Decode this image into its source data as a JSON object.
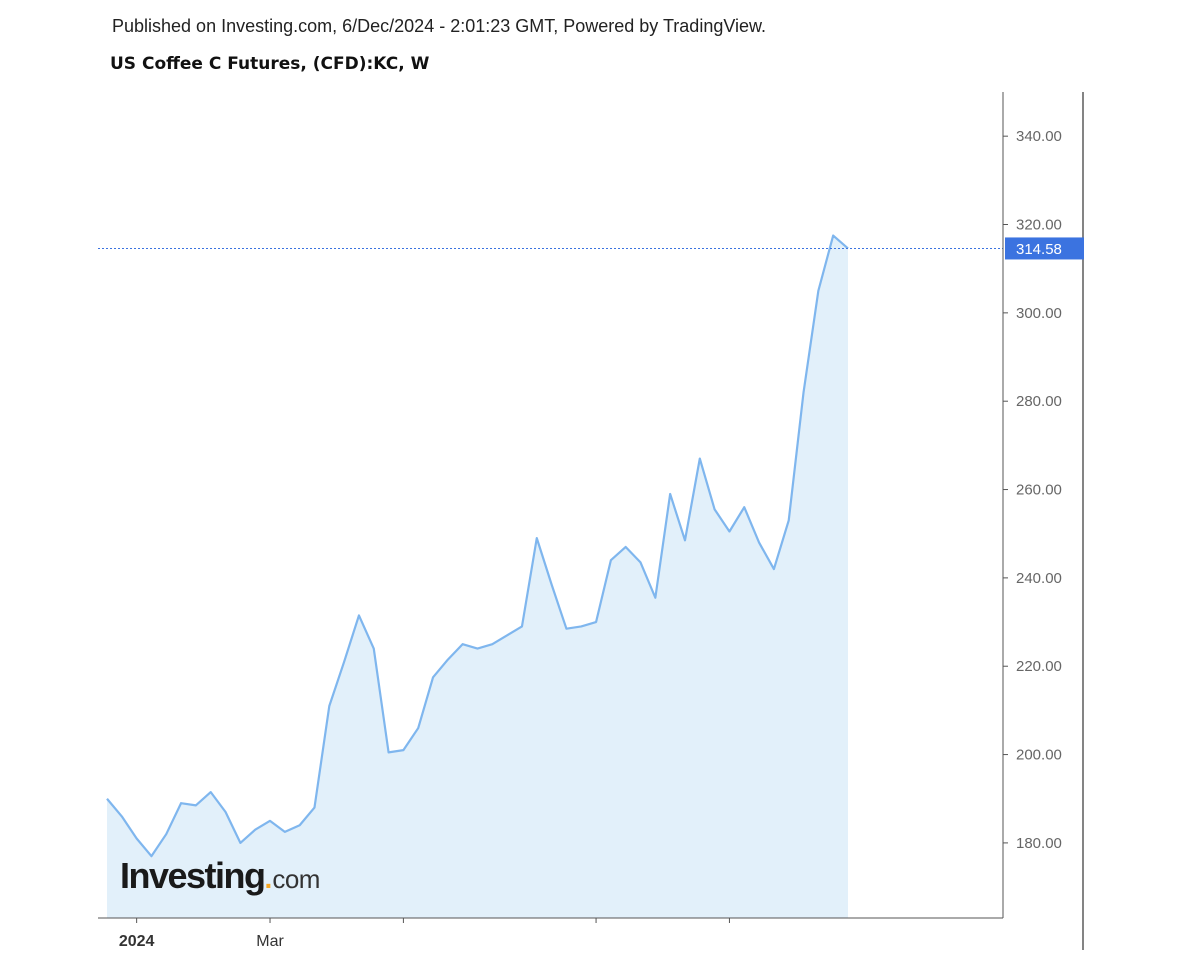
{
  "header": {
    "published": "Published on Investing.com, 6/Dec/2024 - 2:01:23 GMT, Powered by TradingView.",
    "title": "US Coffee C Futures, (CFD):KC, W"
  },
  "logo": {
    "main": "Investing",
    "suffix": "com"
  },
  "colors": {
    "line": "#7fb6ee",
    "area": "#e2f0fa",
    "price_tag": "#3b73e0",
    "axis": "#555555",
    "tick_text": "#666666"
  },
  "chart_data": {
    "type": "area",
    "title": "US Coffee C Futures, (CFD):KC, W",
    "interval": "W",
    "ylim": [
      163,
      350
    ],
    "y_ticks": [
      180,
      200,
      220,
      240,
      260,
      280,
      300,
      320,
      340
    ],
    "y_tick_labels": [
      "180.00",
      "200.00",
      "220.00",
      "240.00",
      "260.00",
      "280.00",
      "300.00",
      "320.00",
      "340.00"
    ],
    "x_tick_labels": [
      {
        "label": "2024",
        "week": 2.0
      },
      {
        "label": "Mar",
        "week": 11.0
      },
      {
        "label": "",
        "week": 20.0
      },
      {
        "label": "",
        "week": 33.0
      },
      {
        "label": "",
        "week": 42.0
      }
    ],
    "last_price": 314.58,
    "last_price_label": "314.58",
    "values": [
      190,
      186,
      181,
      177,
      182,
      189,
      188.5,
      191.5,
      187,
      180,
      183,
      185,
      182.5,
      184,
      188,
      211,
      221,
      231.5,
      224,
      200.5,
      201,
      206,
      217.5,
      221.5,
      225,
      224,
      225,
      227,
      229,
      249,
      238.5,
      228.5,
      229,
      230,
      244,
      247,
      243.5,
      235.5,
      259,
      248.5,
      267,
      255.5,
      250.5,
      256,
      248,
      242,
      253,
      282,
      305,
      317.5,
      314.58
    ]
  }
}
